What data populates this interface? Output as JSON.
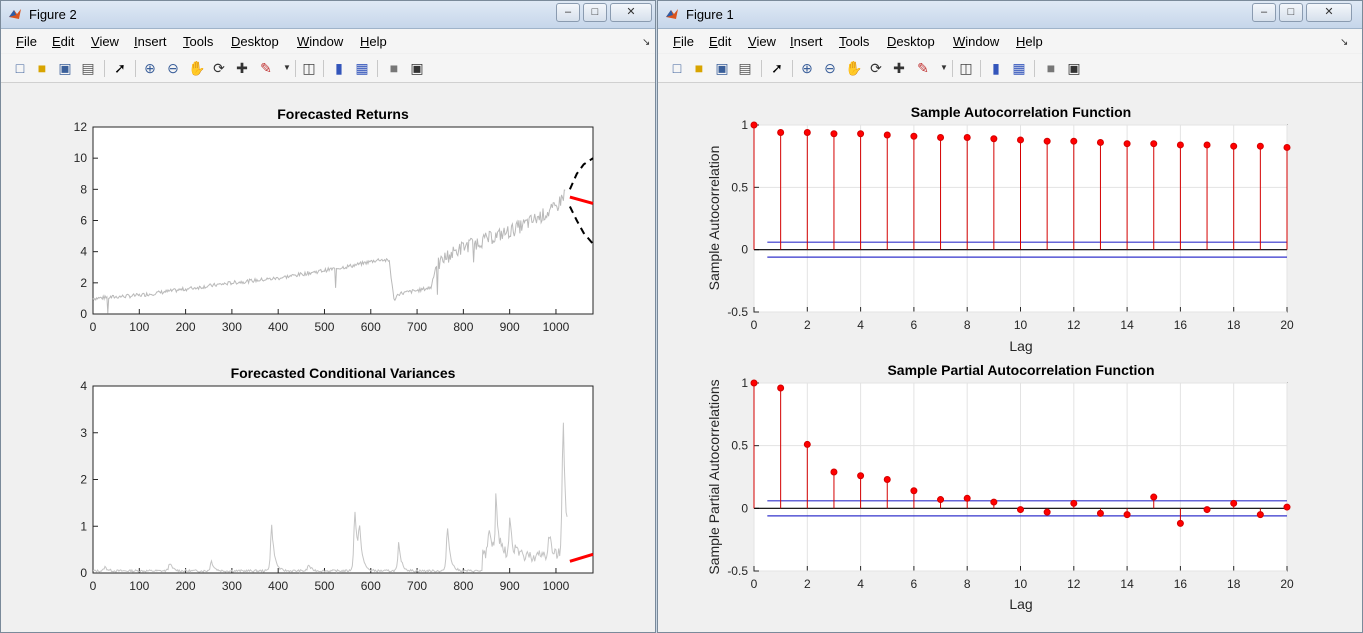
{
  "figure2": {
    "title": "Figure 2",
    "menu": [
      "File",
      "Edit",
      "View",
      "Insert",
      "Tools",
      "Desktop",
      "Window",
      "Help"
    ],
    "top_plot": {
      "title": "Forecasted Returns"
    },
    "bottom_plot": {
      "title": "Forecasted Conditional Variances"
    }
  },
  "figure1": {
    "title": "Figure 1",
    "menu": [
      "File",
      "Edit",
      "View",
      "Insert",
      "Tools",
      "Desktop",
      "Window",
      "Help"
    ],
    "top_plot": {
      "title": "Sample Autocorrelation Function",
      "xlabel": "Lag",
      "ylabel": "Sample Autocorrelation"
    },
    "bottom_plot": {
      "title": "Sample Partial Autocorrelation Function",
      "xlabel": "Lag",
      "ylabel": "Sample Partial Autocorrelations"
    }
  },
  "colors": {
    "stem": "#d40000",
    "bounds": "#3333cc",
    "history": "#b9b9b9",
    "forecast": "#ff0000",
    "ci": "#000000"
  },
  "chart_data": [
    {
      "type": "line",
      "title": "Forecasted Returns",
      "xlim": [
        0,
        1080
      ],
      "ylim": [
        0,
        12
      ],
      "xticks": [
        0,
        100,
        200,
        300,
        400,
        500,
        600,
        700,
        800,
        900,
        1000
      ],
      "yticks": [
        0,
        2,
        4,
        6,
        8,
        10,
        12
      ],
      "history_approx": {
        "x": [
          0,
          100,
          200,
          300,
          400,
          500,
          560,
          620,
          640,
          650,
          660,
          700,
          730,
          740,
          760,
          800,
          850,
          900,
          950,
          1000,
          1020
        ],
        "y": [
          1.0,
          1.2,
          1.6,
          2.0,
          2.3,
          2.8,
          3.1,
          3.5,
          3.4,
          0.9,
          1.3,
          1.5,
          1.7,
          3.0,
          3.6,
          4.3,
          4.8,
          5.3,
          6.0,
          6.8,
          7.8
        ]
      },
      "forecast": {
        "x": [
          1030,
          1080
        ],
        "y": [
          7.5,
          7.1
        ]
      },
      "upper_ci": {
        "x": [
          1030,
          1045,
          1060,
          1080
        ],
        "y": [
          8.0,
          9.0,
          9.6,
          10.0
        ]
      },
      "lower_ci": {
        "x": [
          1030,
          1045,
          1060,
          1080
        ],
        "y": [
          6.9,
          6.0,
          5.2,
          4.5
        ]
      }
    },
    {
      "type": "line",
      "title": "Forecasted Conditional Variances",
      "xlim": [
        0,
        1080
      ],
      "ylim": [
        0,
        4
      ],
      "xticks": [
        0,
        100,
        200,
        300,
        400,
        500,
        600,
        700,
        800,
        900,
        1000
      ],
      "yticks": [
        0,
        1,
        2,
        3,
        4
      ],
      "spikes": [
        {
          "x": 25,
          "y": 0.1
        },
        {
          "x": 165,
          "y": 0.2
        },
        {
          "x": 255,
          "y": 0.25
        },
        {
          "x": 385,
          "y": 1.15
        },
        {
          "x": 465,
          "y": 0.15
        },
        {
          "x": 565,
          "y": 1.5
        },
        {
          "x": 575,
          "y": 0.85
        },
        {
          "x": 660,
          "y": 0.6
        },
        {
          "x": 765,
          "y": 1.1
        },
        {
          "x": 855,
          "y": 0.7
        },
        {
          "x": 870,
          "y": 1.25
        },
        {
          "x": 900,
          "y": 0.85
        },
        {
          "x": 985,
          "y": 0.5
        },
        {
          "x": 1015,
          "y": 3.35
        }
      ],
      "forecast": {
        "x": [
          1030,
          1080
        ],
        "y": [
          0.25,
          0.4
        ]
      }
    },
    {
      "type": "stem",
      "title": "Sample Autocorrelation Function",
      "xlabel": "Lag",
      "ylabel": "Sample Autocorrelation",
      "xlim": [
        0,
        20
      ],
      "ylim": [
        -0.5,
        1
      ],
      "xticks": [
        0,
        2,
        4,
        6,
        8,
        10,
        12,
        14,
        16,
        18,
        20
      ],
      "yticks": [
        -0.5,
        0,
        0.5,
        1
      ],
      "x": [
        0,
        1,
        2,
        3,
        4,
        5,
        6,
        7,
        8,
        9,
        10,
        11,
        12,
        13,
        14,
        15,
        16,
        17,
        18,
        19,
        20
      ],
      "values": [
        1.0,
        0.94,
        0.94,
        0.93,
        0.93,
        0.92,
        0.91,
        0.9,
        0.9,
        0.89,
        0.88,
        0.87,
        0.87,
        0.86,
        0.85,
        0.85,
        0.84,
        0.84,
        0.83,
        0.83,
        0.82
      ],
      "bounds": [
        0.06,
        -0.06
      ]
    },
    {
      "type": "stem",
      "title": "Sample Partial Autocorrelation Function",
      "xlabel": "Lag",
      "ylabel": "Sample Partial Autocorrelations",
      "xlim": [
        0,
        20
      ],
      "ylim": [
        -0.5,
        1
      ],
      "xticks": [
        0,
        2,
        4,
        6,
        8,
        10,
        12,
        14,
        16,
        18,
        20
      ],
      "yticks": [
        -0.5,
        0,
        0.5,
        1
      ],
      "x": [
        0,
        1,
        2,
        3,
        4,
        5,
        6,
        7,
        8,
        9,
        10,
        11,
        12,
        13,
        14,
        15,
        16,
        17,
        18,
        19,
        20
      ],
      "values": [
        1.0,
        0.96,
        0.51,
        0.29,
        0.26,
        0.23,
        0.14,
        0.07,
        0.08,
        0.05,
        -0.01,
        -0.03,
        0.04,
        -0.04,
        -0.05,
        0.09,
        -0.12,
        -0.01,
        0.04,
        -0.05,
        0.01
      ],
      "bounds": [
        0.06,
        -0.06
      ]
    }
  ]
}
